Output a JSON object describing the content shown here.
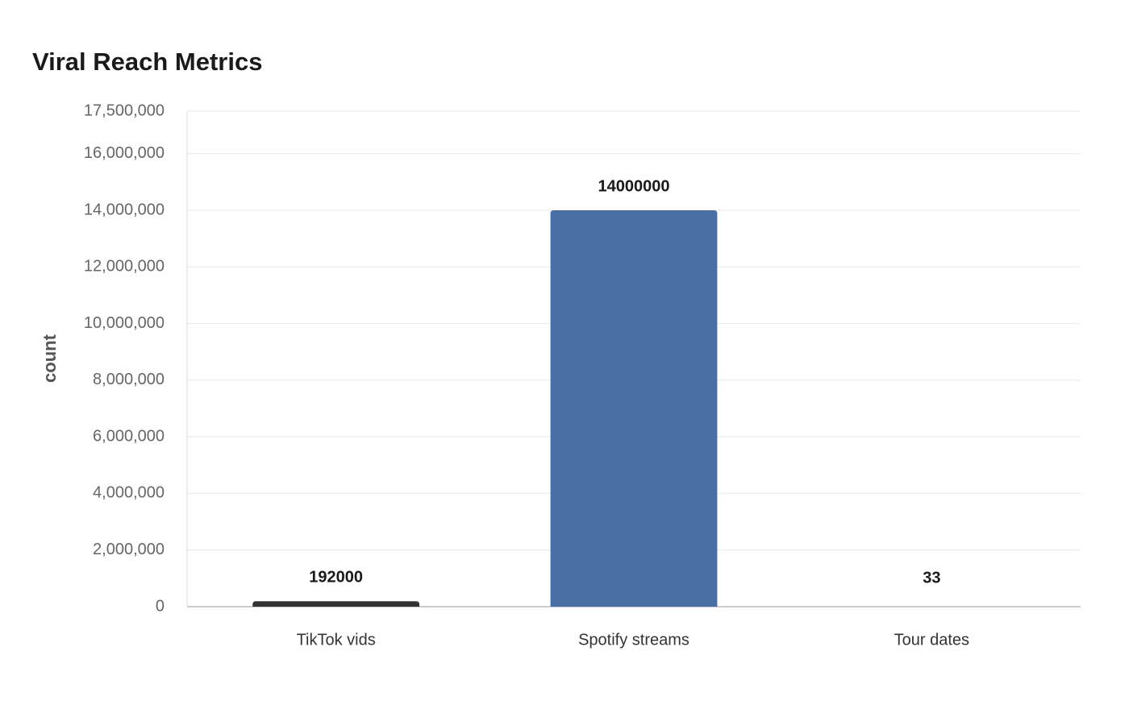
{
  "chart_data": {
    "type": "bar",
    "title": "Viral Reach Metrics",
    "y_label": "count",
    "categories": [
      "TikTok vids",
      "Spotify streams",
      "Tour dates"
    ],
    "values": [
      192000,
      14000000,
      33
    ],
    "colors": [
      "#333333",
      "#4a6fa5",
      "#8fa3c8"
    ],
    "ylim": [
      0,
      17500000
    ],
    "yticks": [
      0,
      {
        "value": 2000000,
        "label": "2,000,000"
      },
      {
        "value": 4000000,
        "label": "4,000,000"
      },
      {
        "value": 6000000,
        "label": "6,000,000"
      },
      {
        "value": 8000000,
        "label": "8,000,000"
      },
      {
        "value": 10000000,
        "label": "10,000,000"
      },
      {
        "value": 12000000,
        "label": "12,000,000"
      },
      {
        "value": 14000000,
        "label": "14,000,000"
      },
      {
        "value": 16000000,
        "label": "16,000,000"
      },
      {
        "value": 17500000,
        "label": "17,500,000"
      }
    ],
    "grid": true
  }
}
